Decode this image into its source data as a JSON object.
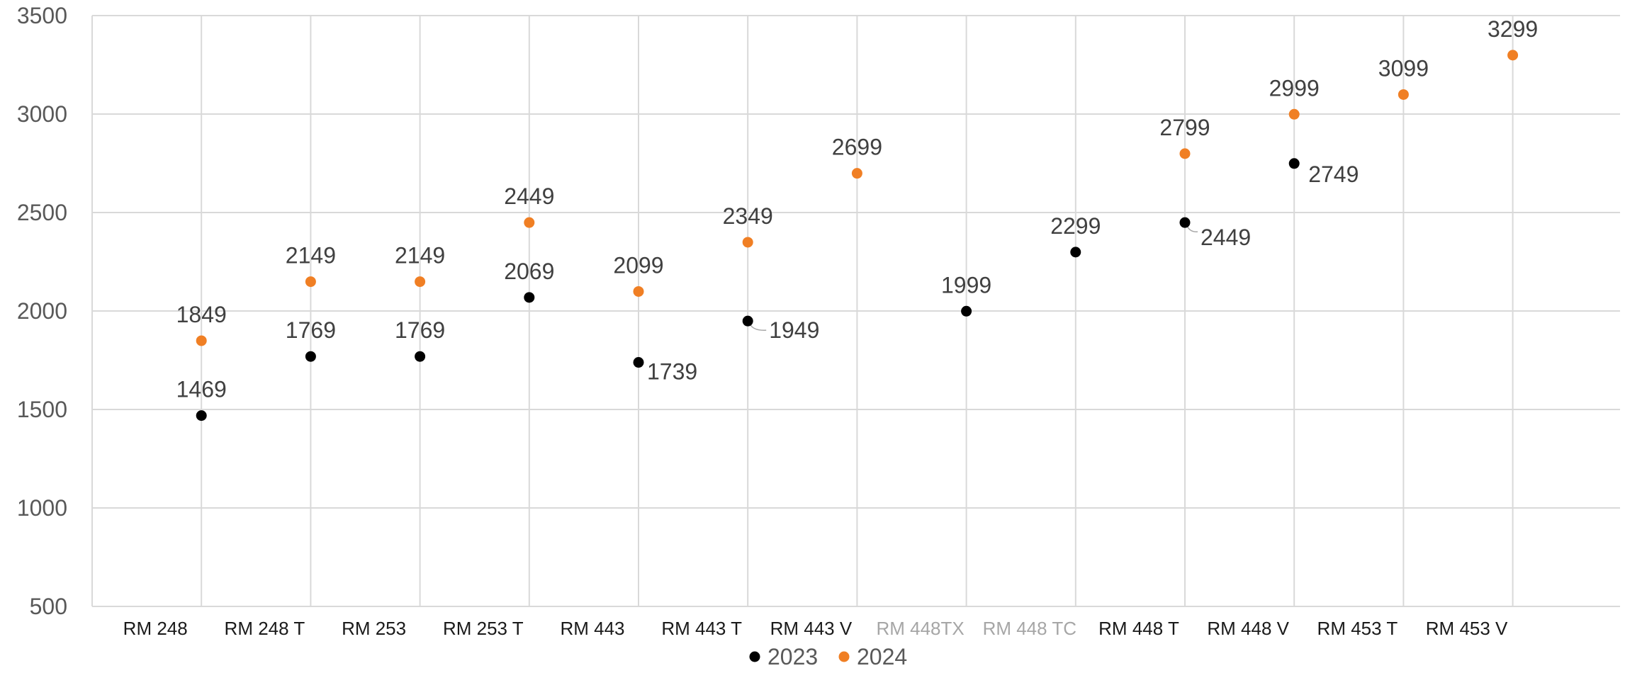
{
  "chart_data": {
    "type": "scatter",
    "categories": [
      "RM 248",
      "RM 248 T",
      "RM 253",
      "RM 253 T",
      "RM 443",
      "RM 443 T",
      "RM 443 V",
      "RM 448TX",
      "RM 448 TC",
      "RM 448 T",
      "RM 448 V",
      "RM 453 T",
      "RM 453 V"
    ],
    "muted_categories": [
      "RM 448TX",
      "RM 448 TC"
    ],
    "series": [
      {
        "name": "2023",
        "color": "#000000",
        "values": [
          1469,
          1769,
          1769,
          2069,
          1739,
          1949,
          null,
          1999,
          2299,
          2449,
          2749,
          null,
          null
        ]
      },
      {
        "name": "2024",
        "color": "#f07f24",
        "values": [
          1849,
          2149,
          2149,
          2449,
          2099,
          2349,
          2699,
          null,
          null,
          2799,
          2999,
          3099,
          3299
        ]
      }
    ],
    "ylim": [
      500,
      3500
    ],
    "yticks": [
      500,
      1000,
      1500,
      2000,
      2500,
      3000,
      3500
    ],
    "grid": true,
    "legend_position": "bottom",
    "title": "",
    "xlabel": "",
    "ylabel": ""
  }
}
